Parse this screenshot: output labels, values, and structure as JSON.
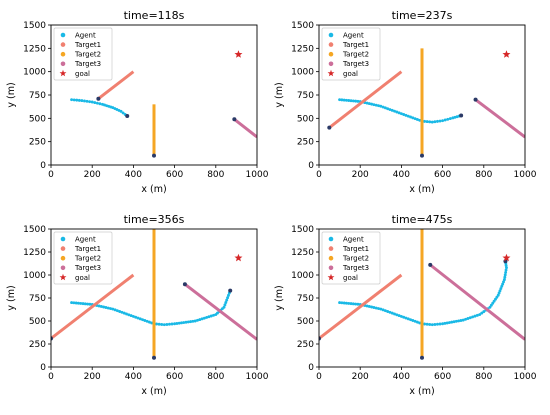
{
  "chart_data": [
    {
      "type": "line",
      "title": "time=118s",
      "xlabel": "x (m)",
      "ylabel": "y (m)",
      "xlim": [
        0,
        1000
      ],
      "ylim": [
        0,
        1500
      ],
      "xticks": [
        "0",
        "200",
        "400",
        "600",
        "800",
        "1000"
      ],
      "yticks": [
        "0",
        "250",
        "500",
        "750",
        "1000",
        "1250",
        "1500"
      ],
      "grid": false,
      "legend_position": "upper-left",
      "series": [
        {
          "name": "Agent",
          "color": "#1ab9e6",
          "style": "dots",
          "points": [
            [
              100,
              700
            ],
            [
              150,
              690
            ],
            [
              200,
              675
            ],
            [
              250,
              650
            ],
            [
              300,
              615
            ],
            [
              340,
              575
            ],
            [
              370,
              525
            ]
          ]
        },
        {
          "name": "Target1",
          "color": "#f08070",
          "style": "thick-line",
          "points": [
            [
              230,
              710
            ],
            [
              400,
              1000
            ]
          ]
        },
        {
          "name": "Target2",
          "color": "#f5a623",
          "style": "thick-line",
          "points": [
            [
              500,
              100
            ],
            [
              500,
              650
            ]
          ]
        },
        {
          "name": "Target3",
          "color": "#cc6f9a",
          "style": "thick-line",
          "points": [
            [
              890,
              490
            ],
            [
              1000,
              300
            ]
          ]
        },
        {
          "name": "goal",
          "color": "#d62728",
          "style": "star",
          "points": [
            [
              910,
              1185
            ]
          ]
        }
      ]
    },
    {
      "type": "line",
      "title": "time=237s",
      "xlabel": "x (m)",
      "ylabel": "y (m)",
      "xlim": [
        0,
        1000
      ],
      "ylim": [
        0,
        1500
      ],
      "xticks": [
        "0",
        "200",
        "400",
        "600",
        "800",
        "1000"
      ],
      "yticks": [
        "0",
        "250",
        "500",
        "750",
        "1000",
        "1250",
        "1500"
      ],
      "grid": false,
      "legend_position": "upper-left",
      "series": [
        {
          "name": "Agent",
          "color": "#1ab9e6",
          "style": "dots",
          "points": [
            [
              100,
              700
            ],
            [
              200,
              680
            ],
            [
              300,
              630
            ],
            [
              400,
              550
            ],
            [
              500,
              470
            ],
            [
              550,
              460
            ],
            [
              600,
              475
            ],
            [
              650,
              505
            ],
            [
              690,
              530
            ]
          ]
        },
        {
          "name": "Target1",
          "color": "#f08070",
          "style": "thick-line",
          "points": [
            [
              50,
              400
            ],
            [
              400,
              1000
            ]
          ]
        },
        {
          "name": "Target2",
          "color": "#f5a623",
          "style": "thick-line",
          "points": [
            [
              500,
              100
            ],
            [
              500,
              1250
            ]
          ]
        },
        {
          "name": "Target3",
          "color": "#cc6f9a",
          "style": "thick-line",
          "points": [
            [
              760,
              700
            ],
            [
              1000,
              300
            ]
          ]
        },
        {
          "name": "goal",
          "color": "#d62728",
          "style": "star",
          "points": [
            [
              910,
              1185
            ]
          ]
        }
      ]
    },
    {
      "type": "line",
      "title": "time=356s",
      "xlabel": "x (m)",
      "ylabel": "y (m)",
      "xlim": [
        0,
        1000
      ],
      "ylim": [
        0,
        1500
      ],
      "xticks": [
        "0",
        "200",
        "400",
        "600",
        "800",
        "1000"
      ],
      "yticks": [
        "0",
        "250",
        "500",
        "750",
        "1000",
        "1250",
        "1500"
      ],
      "grid": false,
      "legend_position": "upper-left",
      "series": [
        {
          "name": "Agent",
          "color": "#1ab9e6",
          "style": "dots",
          "points": [
            [
              100,
              700
            ],
            [
              200,
              680
            ],
            [
              300,
              630
            ],
            [
              400,
              550
            ],
            [
              500,
              470
            ],
            [
              550,
              460
            ],
            [
              600,
              470
            ],
            [
              700,
              500
            ],
            [
              800,
              570
            ],
            [
              840,
              650
            ],
            [
              870,
              830
            ]
          ]
        },
        {
          "name": "Target1",
          "color": "#f08070",
          "style": "thick-line",
          "points": [
            [
              0,
              310
            ],
            [
              400,
              1000
            ]
          ]
        },
        {
          "name": "Target2",
          "color": "#f5a623",
          "style": "thick-line",
          "points": [
            [
              500,
              100
            ],
            [
              500,
              1500
            ]
          ]
        },
        {
          "name": "Target3",
          "color": "#cc6f9a",
          "style": "thick-line",
          "points": [
            [
              650,
              900
            ],
            [
              1000,
              300
            ]
          ]
        },
        {
          "name": "goal",
          "color": "#d62728",
          "style": "star",
          "points": [
            [
              910,
              1185
            ]
          ]
        }
      ]
    },
    {
      "type": "line",
      "title": "time=475s",
      "xlabel": "x (m)",
      "ylabel": "y (m)",
      "xlim": [
        0,
        1000
      ],
      "ylim": [
        0,
        1500
      ],
      "xticks": [
        "0",
        "200",
        "400",
        "600",
        "800",
        "1000"
      ],
      "yticks": [
        "0",
        "250",
        "500",
        "750",
        "1000",
        "1250",
        "1500"
      ],
      "grid": false,
      "legend_position": "upper-left",
      "series": [
        {
          "name": "Agent",
          "color": "#1ab9e6",
          "style": "dots",
          "points": [
            [
              100,
              700
            ],
            [
              200,
              680
            ],
            [
              300,
              630
            ],
            [
              400,
              550
            ],
            [
              500,
              470
            ],
            [
              550,
              460
            ],
            [
              600,
              470
            ],
            [
              700,
              510
            ],
            [
              780,
              570
            ],
            [
              830,
              650
            ],
            [
              870,
              780
            ],
            [
              900,
              950
            ],
            [
              910,
              1080
            ],
            [
              905,
              1150
            ]
          ]
        },
        {
          "name": "Target1",
          "color": "#f08070",
          "style": "thick-line",
          "points": [
            [
              0,
              310
            ],
            [
              400,
              1000
            ]
          ]
        },
        {
          "name": "Target2",
          "color": "#f5a623",
          "style": "thick-line",
          "points": [
            [
              500,
              100
            ],
            [
              500,
              1500
            ]
          ]
        },
        {
          "name": "Target3",
          "color": "#cc6f9a",
          "style": "thick-line",
          "points": [
            [
              540,
              1110
            ],
            [
              1000,
              300
            ]
          ]
        },
        {
          "name": "goal",
          "color": "#d62728",
          "style": "star",
          "points": [
            [
              910,
              1185
            ]
          ]
        }
      ]
    }
  ]
}
